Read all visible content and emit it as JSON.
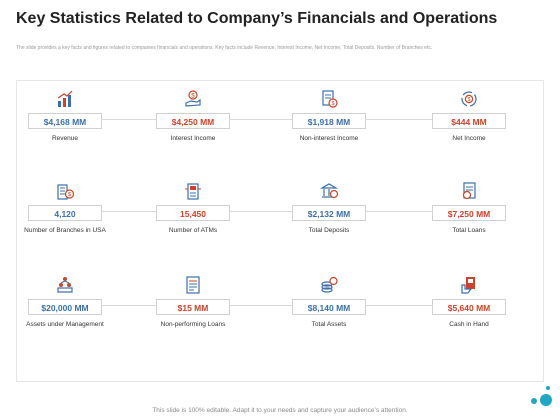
{
  "page": {
    "title": "Key Statistics Related to Company’s Financials and Operations",
    "subtitle": "The slide provides a key facts and figures related to companies financials and operations. Key facts include Revenue, Interest Income, Net Income, Total Deposits, Number of Branches etc.",
    "footer": "This slide is 100% editable. Adapt it to your needs and capture your audience’s attention."
  },
  "colors": {
    "blue": "#3d6fa8",
    "red": "#c8442a",
    "teal": "#1fa7c4"
  },
  "stats": [
    [
      {
        "value": "$4,168 MM",
        "label": "Revenue",
        "color": "blue",
        "icon": "bar-chart-growth-icon"
      },
      {
        "value": "$4,250 MM",
        "label": "Interest Income",
        "color": "red",
        "icon": "hand-coin-icon"
      },
      {
        "value": "$1,918 MM",
        "label": "Non-interest Income",
        "color": "blue",
        "icon": "document-coin-icon"
      },
      {
        "value": "$444 MM",
        "label": "Net Income",
        "color": "red",
        "icon": "coin-cycle-icon"
      }
    ],
    [
      {
        "value": "4,120",
        "label": "Number of Branches in USA",
        "color": "blue",
        "icon": "building-coin-icon"
      },
      {
        "value": "15,450",
        "label": "Number of ATMs",
        "color": "red",
        "icon": "atm-machine-icon"
      },
      {
        "value": "$2,132 MM",
        "label": "Total Deposits",
        "color": "blue",
        "icon": "bank-deposit-icon"
      },
      {
        "value": "$7,250 MM",
        "label": "Total Loans",
        "color": "red",
        "icon": "loan-document-icon"
      }
    ],
    [
      {
        "value": "$20,000 MM",
        "label": "Assets under Management",
        "color": "blue",
        "icon": "asset-pyramid-icon"
      },
      {
        "value": "$15 MM",
        "label": "Non-performing Loans",
        "color": "red",
        "icon": "report-icon"
      },
      {
        "value": "$8,140 MM",
        "label": "Total Assets",
        "color": "blue",
        "icon": "coin-stack-icon"
      },
      {
        "value": "$5,640 MM",
        "label": "Cash in Hand",
        "color": "red",
        "icon": "cash-in-hand-icon"
      }
    ]
  ]
}
